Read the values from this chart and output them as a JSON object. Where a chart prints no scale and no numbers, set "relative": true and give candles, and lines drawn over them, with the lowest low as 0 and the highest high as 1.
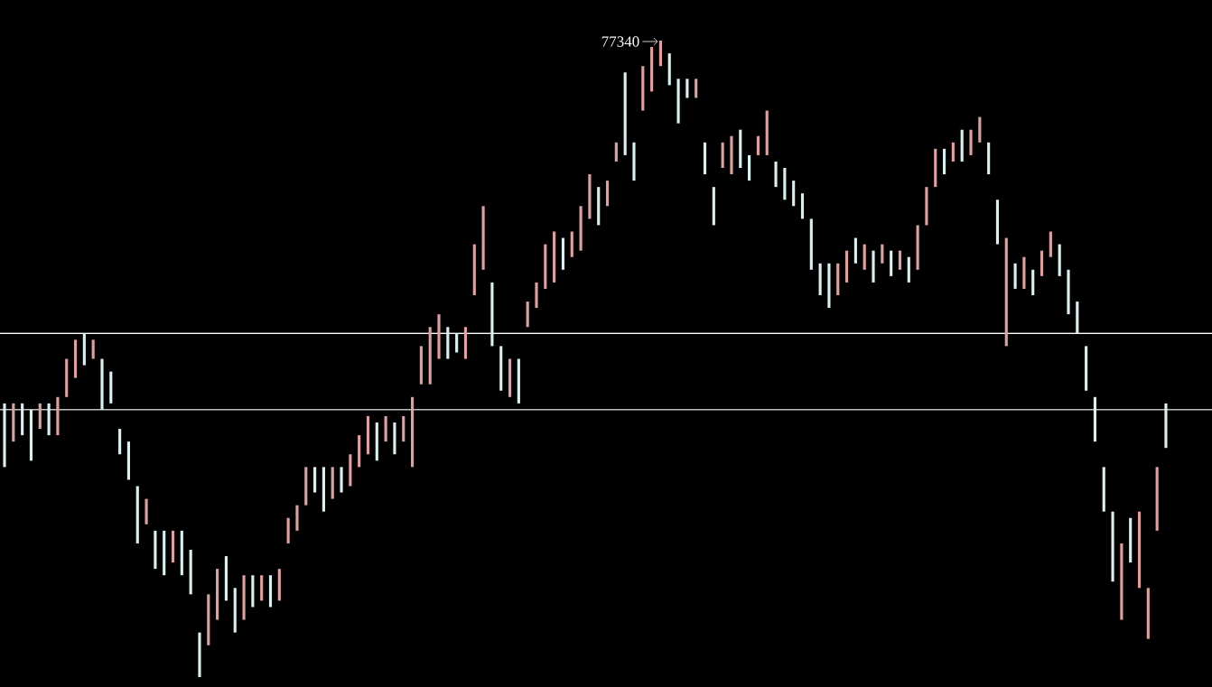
{
  "chart_data": {
    "type": "candlestick",
    "relative": true,
    "categories": [
      null,
      null,
      null,
      null,
      null,
      null,
      null,
      null,
      null,
      null,
      null,
      null,
      null,
      null,
      null,
      null,
      null,
      null,
      null,
      null,
      null,
      null,
      null,
      null,
      null,
      null,
      null,
      null,
      null,
      null,
      null,
      null,
      null,
      null,
      null,
      null,
      null,
      null,
      null,
      null,
      null,
      null,
      null,
      null,
      null,
      null,
      null,
      null,
      null,
      null,
      null,
      null,
      null,
      null,
      null,
      null,
      null,
      null,
      null,
      null,
      null,
      null,
      null,
      null,
      null,
      null,
      null,
      null,
      null,
      null,
      null,
      null,
      null,
      null,
      null,
      null,
      null,
      null,
      null,
      null,
      null,
      null,
      null,
      null,
      null,
      null,
      null,
      null,
      null,
      null,
      null,
      null,
      null,
      null,
      null,
      null,
      null,
      null,
      null,
      null,
      null,
      null,
      null,
      null,
      null,
      null,
      null,
      null,
      null,
      null,
      null,
      null,
      null,
      null,
      null,
      null,
      null,
      null,
      null,
      null,
      null,
      null,
      null,
      null,
      null,
      null,
      null,
      null,
      null,
      null,
      null,
      null
    ],
    "ohlc": [
      [
        0.43,
        0.43,
        0.33,
        0.33
      ],
      [
        0.37,
        0.43,
        0.37,
        0.43
      ],
      [
        0.43,
        0.43,
        0.38,
        0.38
      ],
      [
        0.42,
        0.42,
        0.34,
        0.34
      ],
      [
        0.39,
        0.43,
        0.39,
        0.43
      ],
      [
        0.43,
        0.43,
        0.38,
        0.38
      ],
      [
        0.38,
        0.44,
        0.38,
        0.44
      ],
      [
        0.44,
        0.5,
        0.44,
        0.5
      ],
      [
        0.47,
        0.53,
        0.47,
        0.53
      ],
      [
        0.54,
        0.54,
        0.49,
        0.49
      ],
      [
        0.5,
        0.53,
        0.5,
        0.53
      ],
      [
        0.5,
        0.5,
        0.42,
        0.42
      ],
      [
        0.48,
        0.48,
        0.43,
        0.43
      ],
      [
        0.39,
        0.39,
        0.35,
        0.35
      ],
      [
        0.37,
        0.37,
        0.31,
        0.31
      ],
      [
        0.3,
        0.3,
        0.21,
        0.21
      ],
      [
        0.24,
        0.28,
        0.24,
        0.28
      ],
      [
        0.23,
        0.23,
        0.17,
        0.17
      ],
      [
        0.23,
        0.23,
        0.16,
        0.16
      ],
      [
        0.18,
        0.23,
        0.18,
        0.23
      ],
      [
        0.23,
        0.23,
        0.16,
        0.16
      ],
      [
        0.2,
        0.2,
        0.13,
        0.13
      ],
      [
        0.07,
        0.07,
        0,
        0
      ],
      [
        0.05,
        0.13,
        0.05,
        0.13
      ],
      [
        0.09,
        0.17,
        0.09,
        0.17
      ],
      [
        0.19,
        0.19,
        0.12,
        0.12
      ],
      [
        0.14,
        0.14,
        0.07,
        0.07
      ],
      [
        0.09,
        0.16,
        0.09,
        0.16
      ],
      [
        0.16,
        0.16,
        0.11,
        0.11
      ],
      [
        0.12,
        0.16,
        0.12,
        0.16
      ],
      [
        0.16,
        0.16,
        0.11,
        0.11
      ],
      [
        0.12,
        0.17,
        0.12,
        0.17
      ],
      [
        0.21,
        0.25,
        0.21,
        0.25
      ],
      [
        0.23,
        0.27,
        0.23,
        0.27
      ],
      [
        0.27,
        0.33,
        0.27,
        0.33
      ],
      [
        0.33,
        0.33,
        0.29,
        0.29
      ],
      [
        0.33,
        0.33,
        0.26,
        0.26
      ],
      [
        0.28,
        0.33,
        0.28,
        0.33
      ],
      [
        0.33,
        0.33,
        0.29,
        0.29
      ],
      [
        0.3,
        0.35,
        0.3,
        0.35
      ],
      [
        0.33,
        0.38,
        0.33,
        0.38
      ],
      [
        0.35,
        0.41,
        0.35,
        0.41
      ],
      [
        0.4,
        0.4,
        0.34,
        0.34
      ],
      [
        0.37,
        0.41,
        0.37,
        0.41
      ],
      [
        0.4,
        0.4,
        0.35,
        0.35
      ],
      [
        0.37,
        0.41,
        0.37,
        0.41
      ],
      [
        0.33,
        0.44,
        0.33,
        0.44
      ],
      [
        0.46,
        0.52,
        0.46,
        0.52
      ],
      [
        0.46,
        0.55,
        0.46,
        0.55
      ],
      [
        0.5,
        0.57,
        0.5,
        0.57
      ],
      [
        0.55,
        0.55,
        0.5,
        0.5
      ],
      [
        0.54,
        0.54,
        0.51,
        0.51
      ],
      [
        0.5,
        0.55,
        0.5,
        0.55
      ],
      [
        0.6,
        0.68,
        0.6,
        0.68
      ],
      [
        0.64,
        0.74,
        0.64,
        0.74
      ],
      [
        0.62,
        0.62,
        0.52,
        0.52
      ],
      [
        0.52,
        0.52,
        0.45,
        0.45
      ],
      [
        0.44,
        0.5,
        0.44,
        0.5
      ],
      [
        0.5,
        0.5,
        0.43,
        0.43
      ],
      [
        0.55,
        0.59,
        0.55,
        0.59
      ],
      [
        0.58,
        0.62,
        0.58,
        0.62
      ],
      [
        0.61,
        0.68,
        0.61,
        0.68
      ],
      [
        0.62,
        0.7,
        0.62,
        0.7
      ],
      [
        0.69,
        0.69,
        0.64,
        0.64
      ],
      [
        0.66,
        0.7,
        0.66,
        0.7
      ],
      [
        0.67,
        0.74,
        0.67,
        0.74
      ],
      [
        0.72,
        0.79,
        0.72,
        0.79
      ],
      [
        0.77,
        0.77,
        0.71,
        0.71
      ],
      [
        0.74,
        0.78,
        0.74,
        0.78
      ],
      [
        0.81,
        0.84,
        0.81,
        0.84
      ],
      [
        0.95,
        0.95,
        0.82,
        0.82
      ],
      [
        0.84,
        0.84,
        0.78,
        0.78
      ],
      [
        0.89,
        0.96,
        0.89,
        0.96
      ],
      [
        0.92,
        0.99,
        0.92,
        0.99
      ],
      [
        0.96,
        1,
        0.96,
        1
      ],
      [
        0.98,
        0.98,
        0.93,
        0.93
      ],
      [
        0.94,
        0.94,
        0.87,
        0.87
      ],
      [
        0.94,
        0.94,
        0.91,
        0.91
      ],
      [
        0.91,
        0.94,
        0.91,
        0.94
      ],
      [
        0.84,
        0.84,
        0.79,
        0.79
      ],
      [
        0.77,
        0.77,
        0.71,
        0.71
      ],
      [
        0.8,
        0.84,
        0.8,
        0.84
      ],
      [
        0.79,
        0.85,
        0.79,
        0.85
      ],
      [
        0.86,
        0.86,
        0.8,
        0.8
      ],
      [
        0.82,
        0.82,
        0.78,
        0.78
      ],
      [
        0.82,
        0.85,
        0.82,
        0.85
      ],
      [
        0.82,
        0.89,
        0.82,
        0.89
      ],
      [
        0.81,
        0.81,
        0.77,
        0.77
      ],
      [
        0.8,
        0.8,
        0.75,
        0.75
      ],
      [
        0.78,
        0.78,
        0.74,
        0.74
      ],
      [
        0.76,
        0.76,
        0.72,
        0.72
      ],
      [
        0.72,
        0.72,
        0.64,
        0.64
      ],
      [
        0.65,
        0.65,
        0.6,
        0.6
      ],
      [
        0.65,
        0.65,
        0.58,
        0.58
      ],
      [
        0.6,
        0.65,
        0.6,
        0.65
      ],
      [
        0.62,
        0.67,
        0.62,
        0.67
      ],
      [
        0.69,
        0.69,
        0.65,
        0.65
      ],
      [
        0.64,
        0.68,
        0.64,
        0.68
      ],
      [
        0.67,
        0.67,
        0.62,
        0.62
      ],
      [
        0.65,
        0.68,
        0.65,
        0.68
      ],
      [
        0.67,
        0.67,
        0.63,
        0.63
      ],
      [
        0.64,
        0.67,
        0.64,
        0.67
      ],
      [
        0.66,
        0.66,
        0.62,
        0.62
      ],
      [
        0.64,
        0.71,
        0.64,
        0.71
      ],
      [
        0.71,
        0.77,
        0.71,
        0.77
      ],
      [
        0.77,
        0.83,
        0.77,
        0.83
      ],
      [
        0.83,
        0.83,
        0.79,
        0.79
      ],
      [
        0.81,
        0.84,
        0.81,
        0.84
      ],
      [
        0.86,
        0.86,
        0.81,
        0.81
      ],
      [
        0.82,
        0.86,
        0.82,
        0.86
      ],
      [
        0.84,
        0.88,
        0.84,
        0.88
      ],
      [
        0.84,
        0.84,
        0.79,
        0.79
      ],
      [
        0.75,
        0.75,
        0.68,
        0.68
      ],
      [
        0.52,
        0.69,
        0.52,
        0.69
      ],
      [
        0.65,
        0.65,
        0.61,
        0.61
      ],
      [
        0.61,
        0.66,
        0.61,
        0.66
      ],
      [
        0.64,
        0.64,
        0.6,
        0.6
      ],
      [
        0.63,
        0.67,
        0.63,
        0.67
      ],
      [
        0.66,
        0.7,
        0.66,
        0.7
      ],
      [
        0.68,
        0.68,
        0.63,
        0.63
      ],
      [
        0.64,
        0.64,
        0.57,
        0.57
      ],
      [
        0.59,
        0.59,
        0.54,
        0.54
      ],
      [
        0.52,
        0.52,
        0.45,
        0.45
      ],
      [
        0.44,
        0.44,
        0.37,
        0.37
      ],
      [
        0.33,
        0.33,
        0.26,
        0.26
      ],
      [
        0.26,
        0.26,
        0.15,
        0.15
      ],
      [
        0.09,
        0.21,
        0.09,
        0.21
      ],
      [
        0.25,
        0.25,
        0.18,
        0.18
      ],
      [
        0.14,
        0.26,
        0.14,
        0.26
      ],
      [
        0.06,
        0.14,
        0.06,
        0.14
      ],
      [
        0.23,
        0.33,
        0.23,
        0.33
      ],
      [
        0.43,
        0.43,
        0.36,
        0.36
      ]
    ],
    "colors": [
      "#d8f0f0",
      "#e0a0a0",
      "#d8f0f0",
      "#d8f0f0",
      "#e0a0a0",
      "#d8f0f0",
      "#e0a0a0",
      "#e0a0a0",
      "#e0a0a0",
      "#d8f0f0",
      "#e0a0a0",
      "#d8f0f0",
      "#d8f0f0",
      "#d8f0f0",
      "#d8f0f0",
      "#d8f0f0",
      "#e0a0a0",
      "#d8f0f0",
      "#d8f0f0",
      "#e0a0a0",
      "#d8f0f0",
      "#d8f0f0",
      "#d8f0f0",
      "#e0a0a0",
      "#e0a0a0",
      "#d8f0f0",
      "#d8f0f0",
      "#e0a0a0",
      "#d8f0f0",
      "#e0a0a0",
      "#d8f0f0",
      "#e0a0a0",
      "#e0a0a0",
      "#e0a0a0",
      "#e0a0a0",
      "#d8f0f0",
      "#d8f0f0",
      "#e0a0a0",
      "#d8f0f0",
      "#e0a0a0",
      "#e0a0a0",
      "#e0a0a0",
      "#d8f0f0",
      "#e0a0a0",
      "#d8f0f0",
      "#e0a0a0",
      "#e0a0a0",
      "#e0a0a0",
      "#e0a0a0",
      "#e0a0a0",
      "#d8f0f0",
      "#d8f0f0",
      "#e0a0a0",
      "#e0a0a0",
      "#e0a0a0",
      "#d8f0f0",
      "#d8f0f0",
      "#e0a0a0",
      "#d8f0f0",
      "#e0a0a0",
      "#e0a0a0",
      "#e0a0a0",
      "#e0a0a0",
      "#d8f0f0",
      "#e0a0a0",
      "#e0a0a0",
      "#e0a0a0",
      "#d8f0f0",
      "#e0a0a0",
      "#e0a0a0",
      "#d8f0f0",
      "#d8f0f0",
      "#e0a0a0",
      "#e0a0a0",
      "#e0a0a0",
      "#d8f0f0",
      "#d8f0f0",
      "#d8f0f0",
      "#e0a0a0",
      "#d8f0f0",
      "#d8f0f0",
      "#e0a0a0",
      "#e0a0a0",
      "#d8f0f0",
      "#d8f0f0",
      "#e0a0a0",
      "#e0a0a0",
      "#d8f0f0",
      "#d8f0f0",
      "#d8f0f0",
      "#d8f0f0",
      "#d8f0f0",
      "#d8f0f0",
      "#d8f0f0",
      "#e0a0a0",
      "#e0a0a0",
      "#d8f0f0",
      "#e0a0a0",
      "#d8f0f0",
      "#e0a0a0",
      "#d8f0f0",
      "#e0a0a0",
      "#d8f0f0",
      "#e0a0a0",
      "#e0a0a0",
      "#e0a0a0",
      "#d8f0f0",
      "#e0a0a0",
      "#d8f0f0",
      "#e0a0a0",
      "#e0a0a0",
      "#d8f0f0",
      "#d8f0f0",
      "#e0a0a0",
      "#d8f0f0",
      "#e0a0a0",
      "#d8f0f0",
      "#e0a0a0",
      "#e0a0a0",
      "#d8f0f0",
      "#d8f0f0",
      "#d8f0f0",
      "#d8f0f0",
      "#d8f0f0",
      "#d8f0f0",
      "#d8f0f0",
      "#e0a0a0",
      "#d8f0f0",
      "#e0a0a0",
      "#e0a0a0",
      "#e0a0a0",
      "#d8f0f0"
    ],
    "ref_lines": [
      {
        "axis": "y",
        "value": 0.54,
        "color": "#ffffff",
        "line_style": "solid"
      },
      {
        "axis": "y",
        "value": 0.42,
        "color": "#ffffff",
        "line_style": "solid"
      }
    ],
    "annotations": [
      "77340"
    ]
  }
}
